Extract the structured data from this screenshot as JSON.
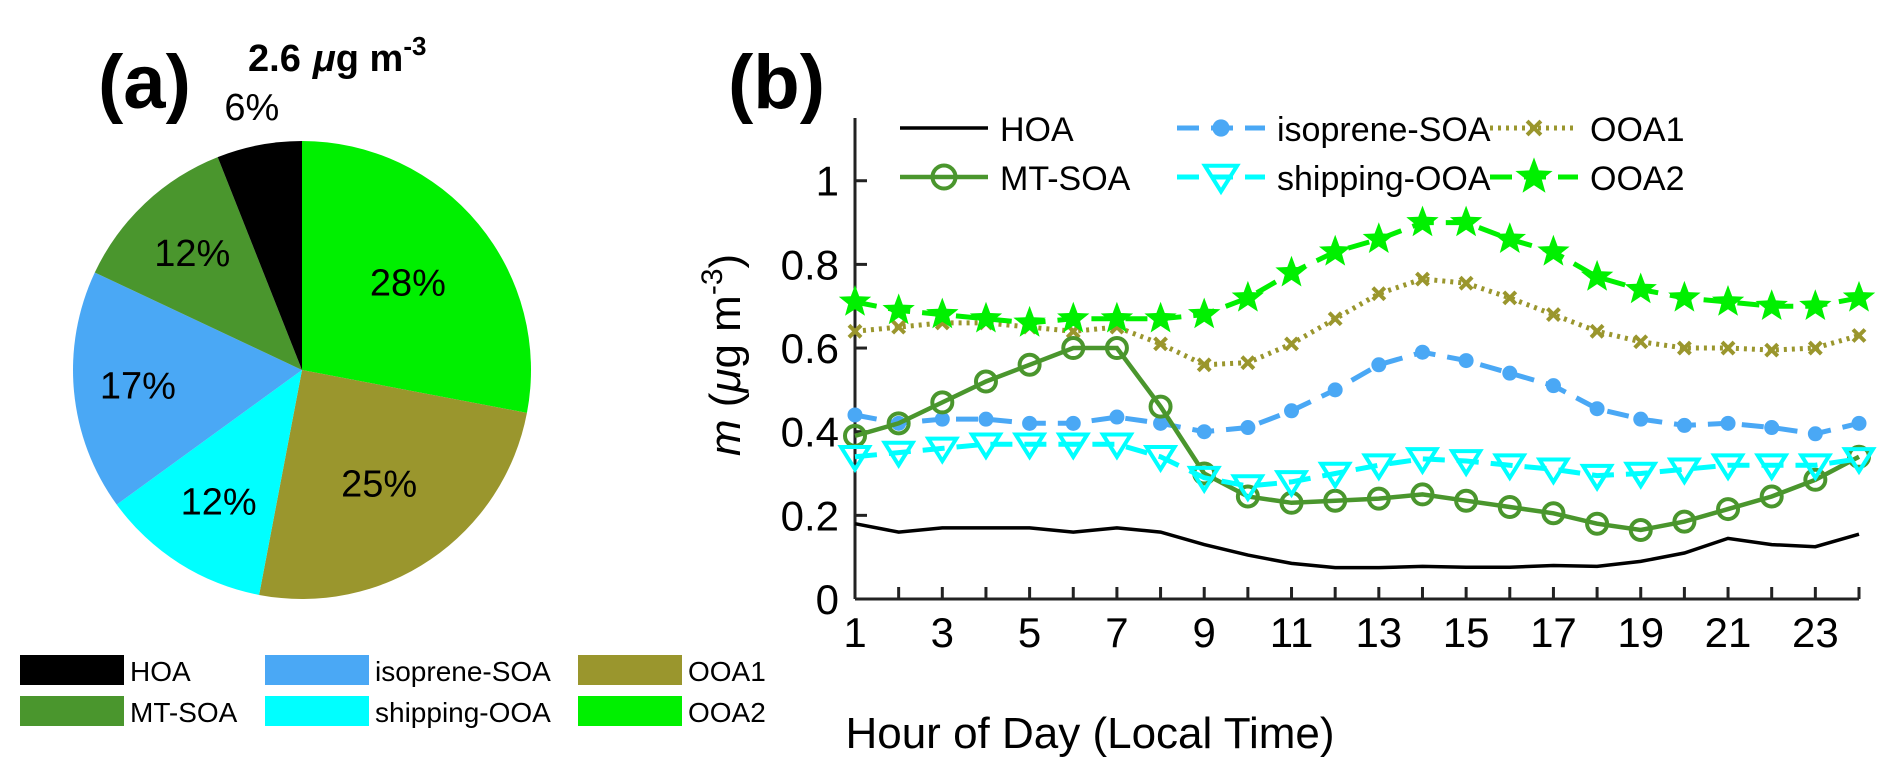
{
  "colors": {
    "HOA": "#000000",
    "MT-SOA": "#4a962d",
    "isoprene-SOA": "#4aa8f5",
    "shipping-OOA": "#00ffff",
    "OOA1": "#9a962d",
    "OOA2": "#00f000"
  },
  "chart_data": [
    {
      "type": "pie",
      "panel": "(a)",
      "total_line": {
        "value": "2.6",
        "unit_mu": "μ",
        "unit_rest": "g m",
        "unit_exp": "-3"
      },
      "slices": [
        {
          "name": "OOA2",
          "value": 28,
          "label": "28%"
        },
        {
          "name": "OOA1",
          "value": 25,
          "label": "25%"
        },
        {
          "name": "shipping-OOA",
          "value": 12,
          "label": "12%"
        },
        {
          "name": "isoprene-SOA",
          "value": 17,
          "label": "17%"
        },
        {
          "name": "MT-SOA",
          "value": 12,
          "label": "12%"
        },
        {
          "name": "HOA",
          "value": 6,
          "label": "6%"
        }
      ],
      "legend": [
        [
          "HOA",
          "isoprene-SOA",
          "OOA1"
        ],
        [
          "MT-SOA",
          "shipping-OOA",
          "OOA2"
        ]
      ]
    },
    {
      "type": "line",
      "panel": "(b)",
      "xlabel": "Hour of Day (Local Time)",
      "ylabel": {
        "italic": "m",
        "open": " (",
        "mu": "μ",
        "rest": "g m",
        "exp": "-3",
        "close": ")"
      },
      "xlim": [
        1,
        24
      ],
      "ylim": [
        0,
        1.15
      ],
      "xticks": [
        1,
        3,
        5,
        7,
        9,
        11,
        13,
        15,
        17,
        19,
        21,
        23
      ],
      "yticks": [
        0,
        0.2,
        0.4,
        0.6,
        0.8,
        1
      ],
      "ytick_labels": [
        "0",
        "0.2",
        "0.4",
        "0.6",
        "0.8",
        "1"
      ],
      "x": [
        1,
        2,
        3,
        4,
        5,
        6,
        7,
        8,
        9,
        10,
        11,
        12,
        13,
        14,
        15,
        16,
        17,
        18,
        19,
        20,
        21,
        22,
        23,
        24
      ],
      "legend_rows": [
        [
          "HOA",
          "isoprene-SOA",
          "OOA1"
        ],
        [
          "MT-SOA",
          "shipping-OOA",
          "OOA2"
        ]
      ],
      "series": [
        {
          "name": "HOA",
          "style": "solid",
          "marker": "none",
          "values": [
            0.18,
            0.16,
            0.17,
            0.17,
            0.17,
            0.16,
            0.17,
            0.16,
            0.13,
            0.105,
            0.085,
            0.075,
            0.075,
            0.078,
            0.076,
            0.076,
            0.08,
            0.078,
            0.09,
            0.11,
            0.145,
            0.13,
            0.125,
            0.155
          ]
        },
        {
          "name": "isoprene-SOA",
          "style": "dashed",
          "marker": "dot",
          "values": [
            0.44,
            0.42,
            0.43,
            0.43,
            0.42,
            0.42,
            0.435,
            0.42,
            0.4,
            0.41,
            0.45,
            0.5,
            0.56,
            0.59,
            0.57,
            0.54,
            0.51,
            0.455,
            0.43,
            0.415,
            0.42,
            0.41,
            0.395,
            0.42
          ]
        },
        {
          "name": "OOA1",
          "style": "dotted",
          "marker": "x",
          "values": [
            0.64,
            0.65,
            0.66,
            0.66,
            0.65,
            0.64,
            0.65,
            0.61,
            0.56,
            0.565,
            0.61,
            0.67,
            0.73,
            0.765,
            0.755,
            0.72,
            0.68,
            0.64,
            0.615,
            0.6,
            0.6,
            0.595,
            0.6,
            0.63
          ]
        },
        {
          "name": "MT-SOA",
          "style": "solid",
          "marker": "circle",
          "values": [
            0.39,
            0.42,
            0.47,
            0.52,
            0.56,
            0.6,
            0.6,
            0.46,
            0.3,
            0.245,
            0.23,
            0.235,
            0.24,
            0.25,
            0.235,
            0.22,
            0.205,
            0.18,
            0.165,
            0.185,
            0.215,
            0.245,
            0.285,
            0.34
          ]
        },
        {
          "name": "shipping-OOA",
          "style": "dashed",
          "marker": "triangle-down",
          "values": [
            0.34,
            0.35,
            0.36,
            0.37,
            0.37,
            0.37,
            0.37,
            0.34,
            0.29,
            0.27,
            0.28,
            0.3,
            0.32,
            0.335,
            0.33,
            0.32,
            0.31,
            0.295,
            0.3,
            0.31,
            0.32,
            0.32,
            0.32,
            0.335
          ]
        },
        {
          "name": "OOA2",
          "style": "dashed",
          "marker": "star",
          "values": [
            0.71,
            0.69,
            0.68,
            0.67,
            0.66,
            0.67,
            0.67,
            0.67,
            0.68,
            0.72,
            0.78,
            0.83,
            0.86,
            0.9,
            0.9,
            0.86,
            0.83,
            0.77,
            0.74,
            0.72,
            0.71,
            0.7,
            0.7,
            0.72
          ]
        }
      ]
    }
  ]
}
